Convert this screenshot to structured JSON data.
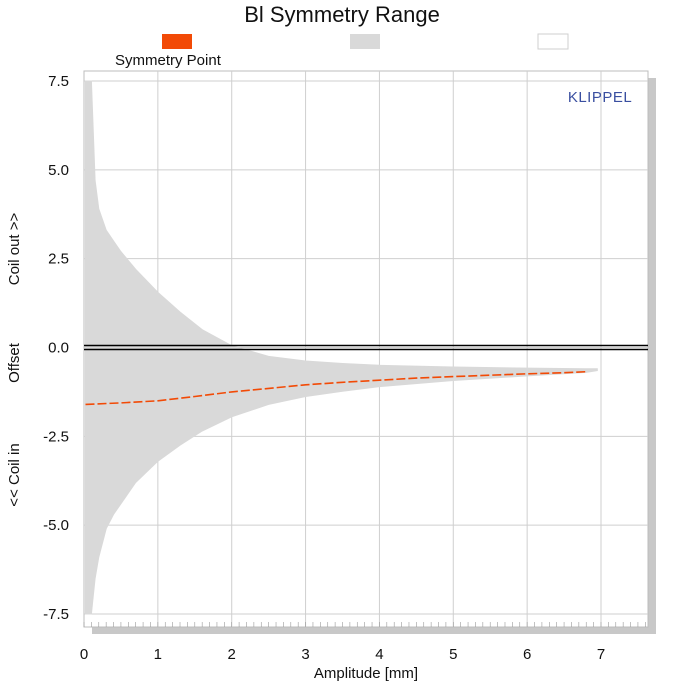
{
  "chart_data": {
    "type": "area",
    "title": "Bl Symmetry Range",
    "brand": "KLIPPEL",
    "xlabel": "Amplitude [mm]",
    "ylabel_parts": [
      "Coil out >>",
      "Offset",
      "<< Coil in"
    ],
    "xlim": [
      0,
      7.7
    ],
    "ylim": [
      -7.5,
      7.5
    ],
    "x_ticks": [
      0,
      1,
      2,
      3,
      4,
      5,
      6,
      7
    ],
    "y_ticks": [
      7.5,
      5.0,
      2.5,
      0.0,
      -2.5,
      -5.0,
      -7.5
    ],
    "y_tick_labels": [
      "7.5",
      "5.0",
      "2.5",
      "0.0",
      "-2.5",
      "-5.0",
      "-7.5"
    ],
    "grid": true,
    "legend": [
      {
        "label": "Symmetry Point",
        "color": "#f24a06",
        "kind": "line"
      },
      {
        "label": "",
        "color": "#d9d9d9",
        "kind": "fill"
      },
      {
        "label": "",
        "color": "#ffffff",
        "kind": "fill"
      }
    ],
    "range_band": {
      "color": "#d9d9d9",
      "x": [
        0.02,
        0.1,
        0.15,
        0.2,
        0.3,
        0.4,
        0.5,
        0.7,
        1.0,
        1.3,
        1.6,
        2.0,
        2.5,
        3.0,
        3.5,
        4.0,
        5.0,
        6.0,
        6.8,
        6.95
      ],
      "upper": [
        7.5,
        7.5,
        4.7,
        3.9,
        3.3,
        3.0,
        2.7,
        2.2,
        1.55,
        1.0,
        0.5,
        0.05,
        -0.25,
        -0.38,
        -0.45,
        -0.5,
        -0.55,
        -0.58,
        -0.6,
        -0.6
      ],
      "lower": [
        -7.5,
        -7.5,
        -6.5,
        -5.9,
        -5.1,
        -4.7,
        -4.4,
        -3.8,
        -3.2,
        -2.75,
        -2.35,
        -1.95,
        -1.6,
        -1.38,
        -1.23,
        -1.1,
        -0.93,
        -0.8,
        -0.7,
        -0.65
      ]
    },
    "zero_line": {
      "y": 0,
      "color": "#000000"
    },
    "series": [
      {
        "name": "Symmetry Point",
        "color": "#f24a06",
        "x": [
          0.02,
          0.5,
          1.0,
          1.5,
          2.0,
          2.5,
          3.0,
          3.5,
          4.0,
          4.5,
          5.0,
          5.5,
          6.0,
          6.5,
          6.8
        ],
        "y": [
          -1.6,
          -1.56,
          -1.5,
          -1.38,
          -1.25,
          -1.15,
          -1.05,
          -0.98,
          -0.92,
          -0.86,
          -0.82,
          -0.78,
          -0.74,
          -0.71,
          -0.68
        ]
      }
    ]
  }
}
